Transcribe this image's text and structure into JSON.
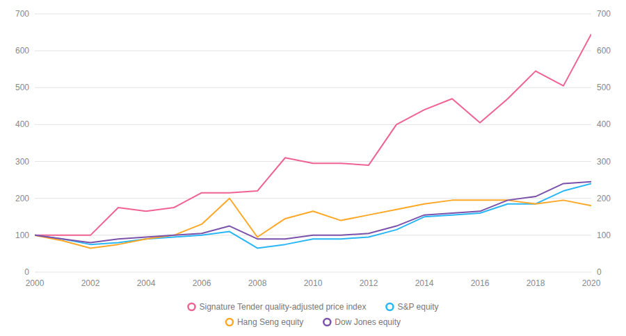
{
  "chart_data": {
    "type": "line",
    "x": [
      2000,
      2001,
      2002,
      2003,
      2004,
      2005,
      2006,
      2007,
      2008,
      2009,
      2010,
      2011,
      2012,
      2013,
      2014,
      2015,
      2016,
      2017,
      2018,
      2019,
      2020
    ],
    "xlim": [
      2000,
      2020
    ],
    "xticks": [
      2000,
      2002,
      2004,
      2006,
      2008,
      2010,
      2012,
      2014,
      2016,
      2018,
      2020
    ],
    "ylim": [
      0,
      700
    ],
    "yticks": [
      0,
      100,
      200,
      300,
      400,
      500,
      600,
      700
    ],
    "y2lim": [
      0,
      700
    ],
    "y2ticks": [
      0,
      100,
      200,
      300,
      400,
      500,
      600,
      700
    ],
    "grid": true,
    "legend": "bottom",
    "series": [
      {
        "name": "Signature Tender quality-adjusted price index",
        "color": "#f06292",
        "values": [
          100,
          100,
          100,
          175,
          165,
          175,
          215,
          215,
          220,
          310,
          295,
          295,
          290,
          400,
          440,
          470,
          405,
          470,
          545,
          505,
          645
        ]
      },
      {
        "name": "S&P equity",
        "color": "#29b6f6",
        "values": [
          100,
          90,
          75,
          80,
          90,
          95,
          100,
          110,
          65,
          75,
          90,
          90,
          95,
          115,
          150,
          155,
          160,
          185,
          185,
          220,
          240
        ]
      },
      {
        "name": "Hang Seng equity",
        "color": "#ffa726",
        "values": [
          100,
          85,
          65,
          75,
          90,
          100,
          130,
          200,
          95,
          145,
          165,
          140,
          155,
          170,
          185,
          195,
          195,
          195,
          185,
          195,
          180
        ]
      },
      {
        "name": "Dow Jones equity",
        "color": "#7b52ab",
        "values": [
          100,
          90,
          80,
          90,
          95,
          100,
          105,
          125,
          90,
          90,
          100,
          100,
          105,
          125,
          155,
          160,
          165,
          195,
          205,
          240,
          245
        ]
      }
    ]
  }
}
